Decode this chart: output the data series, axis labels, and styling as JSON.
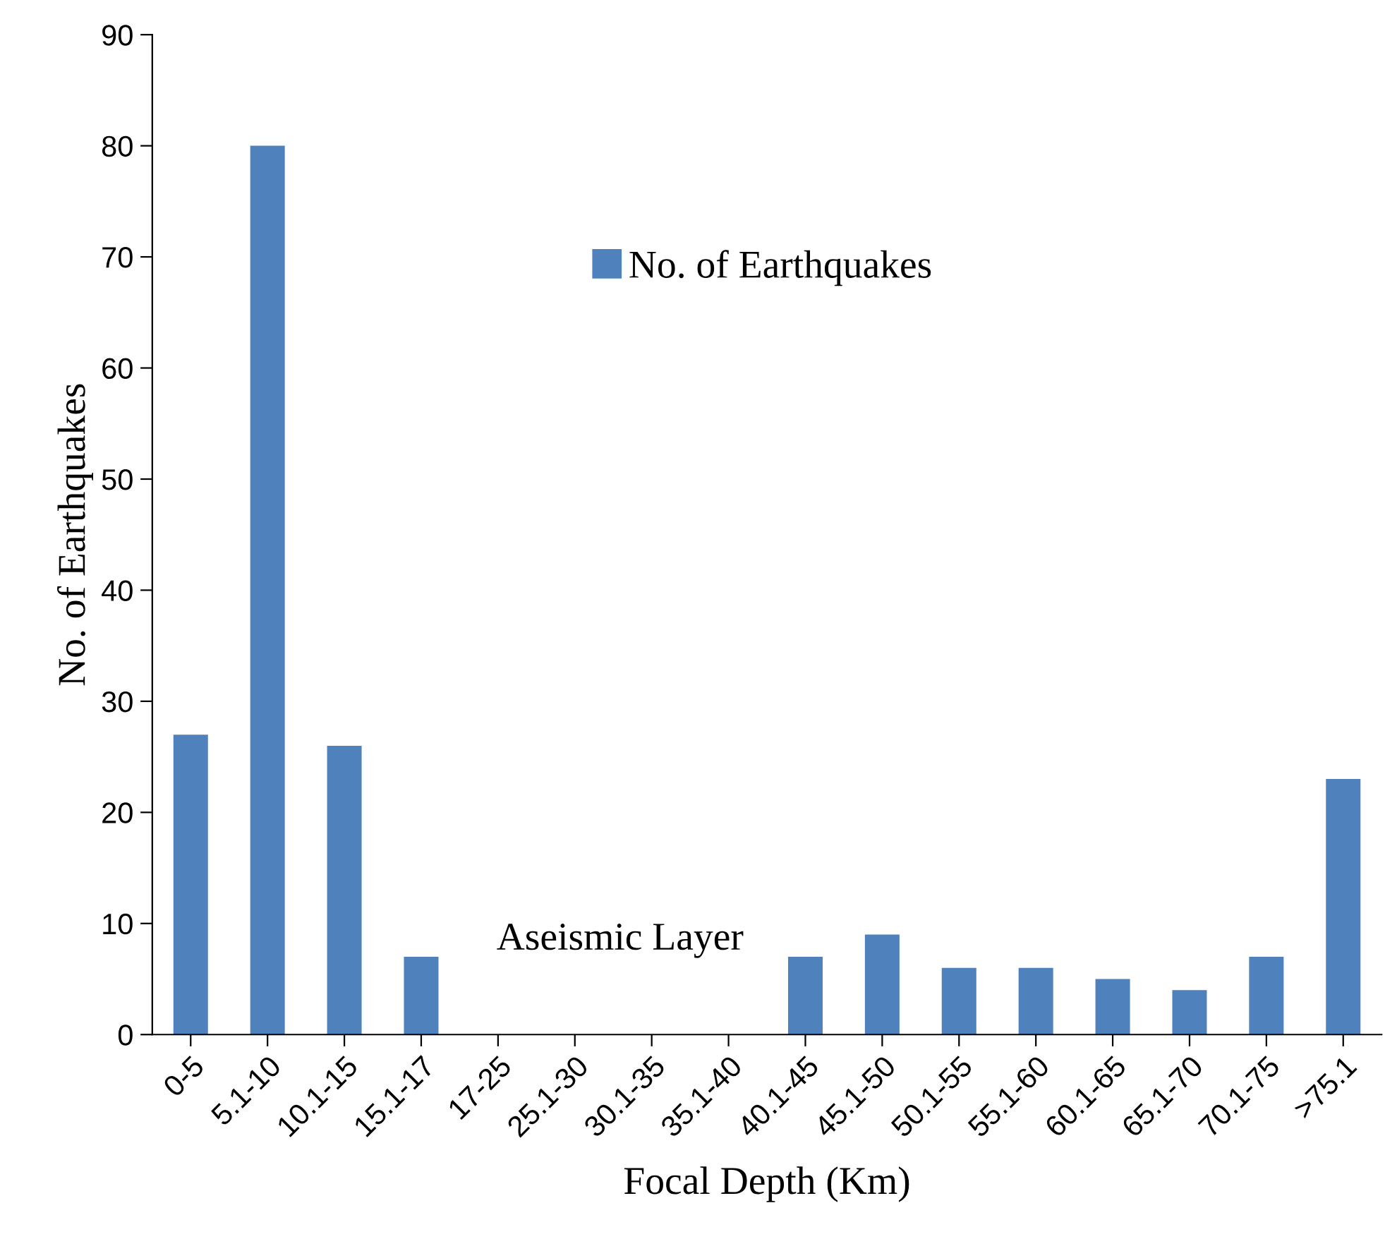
{
  "chart_data": {
    "type": "bar",
    "xlabel": "Focal Depth (Km)",
    "ylabel": "No. of Earthquakes",
    "categories": [
      "0-5",
      "5.1-10",
      "10.1-15",
      "15.1-17",
      "17-25",
      "25.1-30",
      "30.1-35",
      "35.1-40",
      "40.1-45",
      "45.1-50",
      "50.1-55",
      "55.1-60",
      "60.1-65",
      "65.1-70",
      "70.1-75",
      ">75.1"
    ],
    "series": [
      {
        "name": "No. of Earthquakes",
        "color": "#4f81bd",
        "values": [
          27,
          80,
          26,
          7,
          0,
          0,
          0,
          0,
          7,
          9,
          6,
          6,
          5,
          4,
          7,
          23
        ]
      }
    ],
    "ylim": [
      0,
      90
    ],
    "yticks": [
      0,
      10,
      20,
      30,
      40,
      50,
      60,
      70,
      80,
      90
    ],
    "grid": false,
    "legend": "top",
    "annotations": [
      "Aseismic Layer"
    ]
  }
}
